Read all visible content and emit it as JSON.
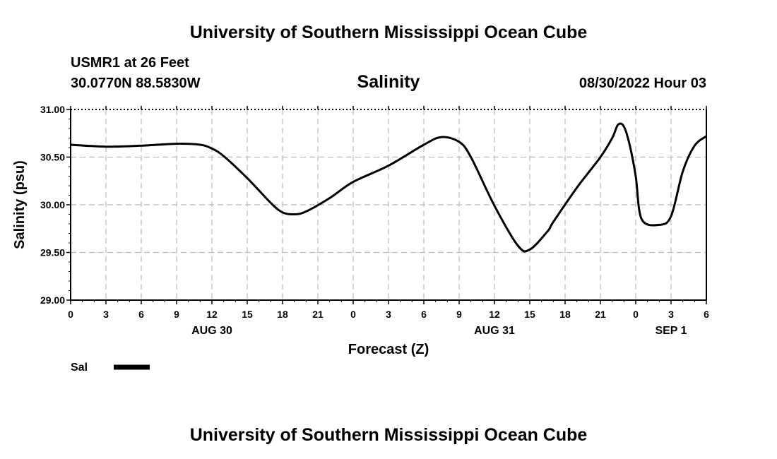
{
  "header": {
    "title": "University of Southern Mississippi Ocean Cube",
    "station": "USMR1 at 26 Feet",
    "location": "30.0770N  88.5830W",
    "valid_time": "08/30/2022 Hour 03",
    "footer_title": "University of Southern Mississippi Ocean Cube"
  },
  "colors": {
    "line": "#000000",
    "grid": "#bbbbbb",
    "background": "#ffffff"
  },
  "chart_data": {
    "type": "line",
    "title": "Salinity",
    "xlabel": "Forecast (Z)",
    "ylabel": "Salinity (psu)",
    "ylim": [
      29.0,
      31.0
    ],
    "xlim": [
      0,
      54
    ],
    "grid": true,
    "legend_position": "bottom-left",
    "y_ticks": [
      "31.00",
      "30.50",
      "30.00",
      "29.50",
      "29.00"
    ],
    "x_tick_labels": [
      "0",
      "3",
      "6",
      "9",
      "12",
      "15",
      "18",
      "21",
      "0",
      "3",
      "6",
      "9",
      "12",
      "15",
      "18",
      "21",
      "0",
      "3",
      "6"
    ],
    "date_labels": [
      {
        "label": "AUG 30",
        "at_tick": 4
      },
      {
        "label": "AUG 31",
        "at_tick": 12
      },
      {
        "label": "SEP 1",
        "at_tick": 17
      }
    ],
    "series": [
      {
        "name": "Sal",
        "x": [
          0,
          3,
          6,
          9,
          11,
          12,
          13,
          15,
          17,
          18,
          19,
          20,
          22,
          24,
          27,
          30,
          31.5,
          33,
          34,
          36,
          38,
          39,
          40.5,
          41,
          43,
          45,
          46,
          46.5,
          47,
          47.5,
          48,
          48.5,
          50,
          51,
          52,
          53,
          54
        ],
        "y": [
          30.63,
          30.61,
          30.62,
          30.64,
          30.63,
          30.59,
          30.51,
          30.28,
          30.02,
          29.92,
          29.9,
          29.93,
          30.07,
          30.24,
          30.41,
          30.63,
          30.71,
          30.66,
          30.5,
          29.99,
          29.57,
          29.53,
          29.72,
          29.82,
          30.18,
          30.5,
          30.7,
          30.84,
          30.82,
          30.62,
          30.3,
          29.85,
          29.79,
          29.88,
          30.35,
          30.62,
          30.72
        ]
      }
    ],
    "legend": [
      {
        "label": "Sal",
        "style": "thick-solid"
      }
    ]
  }
}
